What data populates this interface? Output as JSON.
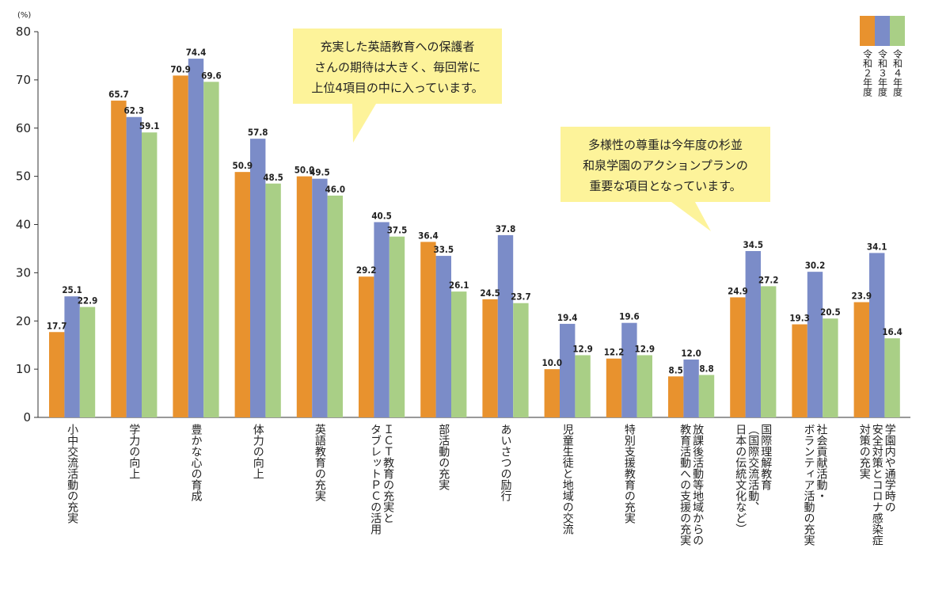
{
  "chart_data": {
    "type": "bar",
    "unit_label": "(%)",
    "ylim": [
      0,
      80
    ],
    "yticks": [
      0,
      10,
      20,
      30,
      40,
      50,
      60,
      70,
      80
    ],
    "grid": false,
    "legend_position": "top-right",
    "categories": [
      [
        "小中交流活動の充実"
      ],
      [
        "学力の向上"
      ],
      [
        "豊かな心の育成"
      ],
      [
        "体力の向上"
      ],
      [
        "英語教育の充実"
      ],
      [
        "ＩＣＴ教育の充実と",
        "タブレットＰＣの活用"
      ],
      [
        "部活動の充実"
      ],
      [
        "あいさつの励行"
      ],
      [
        "児童生徒と地域の交流"
      ],
      [
        "特別支援教育の充実"
      ],
      [
        "放課後活動等地域からの",
        "教育活動への支援の充実"
      ],
      [
        "国際理解教育",
        "（国際交流活動、",
        "日本の伝統文化など）"
      ],
      [
        "社会貢献活動・",
        "ボランティア活動の充実"
      ],
      [
        "学園内や通学時の",
        "安全対策とコロナ感染症",
        "対策の充実"
      ]
    ],
    "series": [
      {
        "name": "令和２年度",
        "color": "#e8922e",
        "values": [
          17.7,
          65.7,
          70.9,
          50.9,
          50.0,
          29.2,
          36.4,
          24.5,
          10.0,
          12.2,
          8.5,
          24.9,
          19.3,
          23.9
        ]
      },
      {
        "name": "令和３年度",
        "color": "#7b8cc8",
        "values": [
          25.1,
          62.3,
          74.4,
          57.8,
          49.5,
          40.5,
          33.5,
          37.8,
          19.4,
          19.6,
          12.0,
          34.5,
          30.2,
          34.1
        ]
      },
      {
        "name": "令和４年度",
        "color": "#a9cf86",
        "values": [
          22.9,
          59.1,
          69.6,
          48.5,
          46.0,
          37.5,
          26.1,
          23.7,
          12.9,
          12.9,
          8.8,
          27.2,
          20.5,
          16.4
        ]
      }
    ],
    "annotations": [
      {
        "lines": [
          "充実した英語教育への保護者",
          "さんの期待は大きく、毎回常に",
          "上位4項目の中に入っています。"
        ],
        "bg": "#fdf39a"
      },
      {
        "lines": [
          "多様性の尊重は今年度の杉並",
          "和泉学園のアクションプランの",
          "重要な項目となっています。"
        ],
        "bg": "#fdf39a"
      }
    ]
  }
}
